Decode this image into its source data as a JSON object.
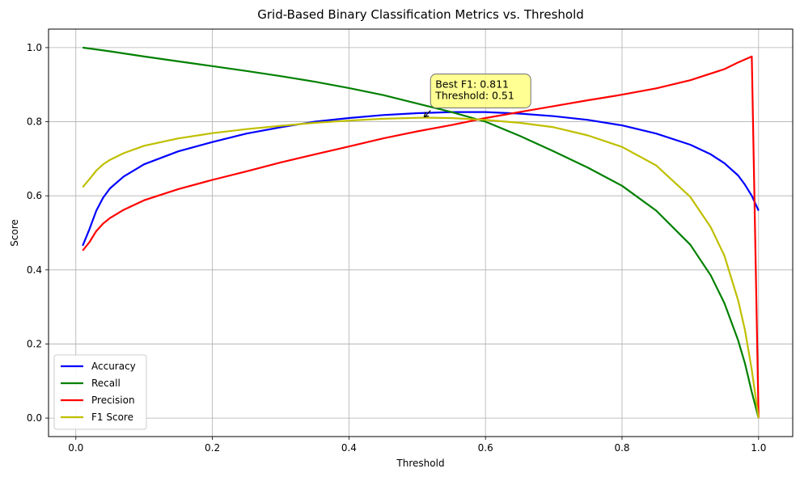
{
  "chart_data": {
    "type": "line",
    "title": "Grid-Based Binary Classification Metrics vs. Threshold",
    "xlabel": "Threshold",
    "ylabel": "Score",
    "xlim": [
      -0.04,
      1.05
    ],
    "ylim": [
      -0.05,
      1.05
    ],
    "xticks": [
      0.0,
      0.2,
      0.4,
      0.6,
      0.8,
      1.0
    ],
    "xtick_labels": [
      "0.0",
      "0.2",
      "0.4",
      "0.6",
      "0.8",
      "1.0"
    ],
    "yticks": [
      0.0,
      0.2,
      0.4,
      0.6,
      0.8,
      1.0
    ],
    "ytick_labels": [
      "0.0",
      "0.2",
      "0.4",
      "0.6",
      "0.8",
      "1.0"
    ],
    "grid": true,
    "legend_position": "lower-left",
    "series": [
      {
        "name": "Accuracy",
        "color": "#0000ff",
        "points": [
          [
            0.01,
            0.465
          ],
          [
            0.02,
            0.51
          ],
          [
            0.03,
            0.56
          ],
          [
            0.04,
            0.595
          ],
          [
            0.05,
            0.62
          ],
          [
            0.07,
            0.652
          ],
          [
            0.1,
            0.685
          ],
          [
            0.15,
            0.72
          ],
          [
            0.2,
            0.745
          ],
          [
            0.25,
            0.768
          ],
          [
            0.3,
            0.785
          ],
          [
            0.35,
            0.8
          ],
          [
            0.4,
            0.81
          ],
          [
            0.45,
            0.818
          ],
          [
            0.5,
            0.823
          ],
          [
            0.55,
            0.826
          ],
          [
            0.6,
            0.826
          ],
          [
            0.65,
            0.822
          ],
          [
            0.7,
            0.815
          ],
          [
            0.75,
            0.805
          ],
          [
            0.8,
            0.79
          ],
          [
            0.85,
            0.768
          ],
          [
            0.9,
            0.738
          ],
          [
            0.93,
            0.712
          ],
          [
            0.95,
            0.688
          ],
          [
            0.97,
            0.655
          ],
          [
            0.98,
            0.63
          ],
          [
            0.99,
            0.6
          ],
          [
            1.0,
            0.56
          ]
        ]
      },
      {
        "name": "Recall",
        "color": "#008000",
        "points": [
          [
            0.01,
            1.0
          ],
          [
            0.05,
            0.99
          ],
          [
            0.1,
            0.976
          ],
          [
            0.15,
            0.963
          ],
          [
            0.2,
            0.95
          ],
          [
            0.25,
            0.937
          ],
          [
            0.3,
            0.923
          ],
          [
            0.35,
            0.908
          ],
          [
            0.4,
            0.891
          ],
          [
            0.45,
            0.872
          ],
          [
            0.5,
            0.849
          ],
          [
            0.55,
            0.826
          ],
          [
            0.6,
            0.8
          ],
          [
            0.65,
            0.762
          ],
          [
            0.7,
            0.72
          ],
          [
            0.75,
            0.676
          ],
          [
            0.8,
            0.627
          ],
          [
            0.85,
            0.56
          ],
          [
            0.9,
            0.468
          ],
          [
            0.93,
            0.385
          ],
          [
            0.95,
            0.31
          ],
          [
            0.97,
            0.21
          ],
          [
            0.98,
            0.148
          ],
          [
            0.99,
            0.07
          ],
          [
            1.0,
            0.0
          ]
        ]
      },
      {
        "name": "Precision",
        "color": "#ff0000",
        "points": [
          [
            0.01,
            0.452
          ],
          [
            0.02,
            0.475
          ],
          [
            0.03,
            0.505
          ],
          [
            0.04,
            0.525
          ],
          [
            0.05,
            0.54
          ],
          [
            0.07,
            0.562
          ],
          [
            0.1,
            0.588
          ],
          [
            0.15,
            0.618
          ],
          [
            0.2,
            0.643
          ],
          [
            0.25,
            0.666
          ],
          [
            0.3,
            0.69
          ],
          [
            0.35,
            0.712
          ],
          [
            0.4,
            0.733
          ],
          [
            0.45,
            0.755
          ],
          [
            0.5,
            0.774
          ],
          [
            0.55,
            0.791
          ],
          [
            0.6,
            0.81
          ],
          [
            0.65,
            0.826
          ],
          [
            0.7,
            0.842
          ],
          [
            0.75,
            0.858
          ],
          [
            0.8,
            0.873
          ],
          [
            0.85,
            0.89
          ],
          [
            0.9,
            0.912
          ],
          [
            0.95,
            0.942
          ],
          [
            0.97,
            0.96
          ],
          [
            0.99,
            0.976
          ],
          [
            1.0,
            0.0
          ]
        ]
      },
      {
        "name": "F1 Score",
        "color": "#bfbf00",
        "points": [
          [
            0.01,
            0.623
          ],
          [
            0.02,
            0.645
          ],
          [
            0.03,
            0.668
          ],
          [
            0.04,
            0.685
          ],
          [
            0.05,
            0.697
          ],
          [
            0.07,
            0.715
          ],
          [
            0.1,
            0.735
          ],
          [
            0.15,
            0.755
          ],
          [
            0.2,
            0.769
          ],
          [
            0.25,
            0.78
          ],
          [
            0.3,
            0.789
          ],
          [
            0.35,
            0.797
          ],
          [
            0.4,
            0.803
          ],
          [
            0.45,
            0.808
          ],
          [
            0.51,
            0.811
          ],
          [
            0.55,
            0.81
          ],
          [
            0.6,
            0.805
          ],
          [
            0.65,
            0.797
          ],
          [
            0.7,
            0.785
          ],
          [
            0.75,
            0.763
          ],
          [
            0.8,
            0.732
          ],
          [
            0.85,
            0.682
          ],
          [
            0.9,
            0.597
          ],
          [
            0.93,
            0.515
          ],
          [
            0.95,
            0.438
          ],
          [
            0.97,
            0.318
          ],
          [
            0.98,
            0.238
          ],
          [
            0.99,
            0.13
          ],
          [
            1.0,
            0.0
          ]
        ]
      }
    ],
    "annotation": {
      "lines": [
        "Best F1: 0.811",
        "Threshold: 0.51"
      ],
      "point": [
        0.51,
        0.811
      ],
      "box_fill": "#ffff80",
      "box_stroke": "#707070"
    }
  }
}
